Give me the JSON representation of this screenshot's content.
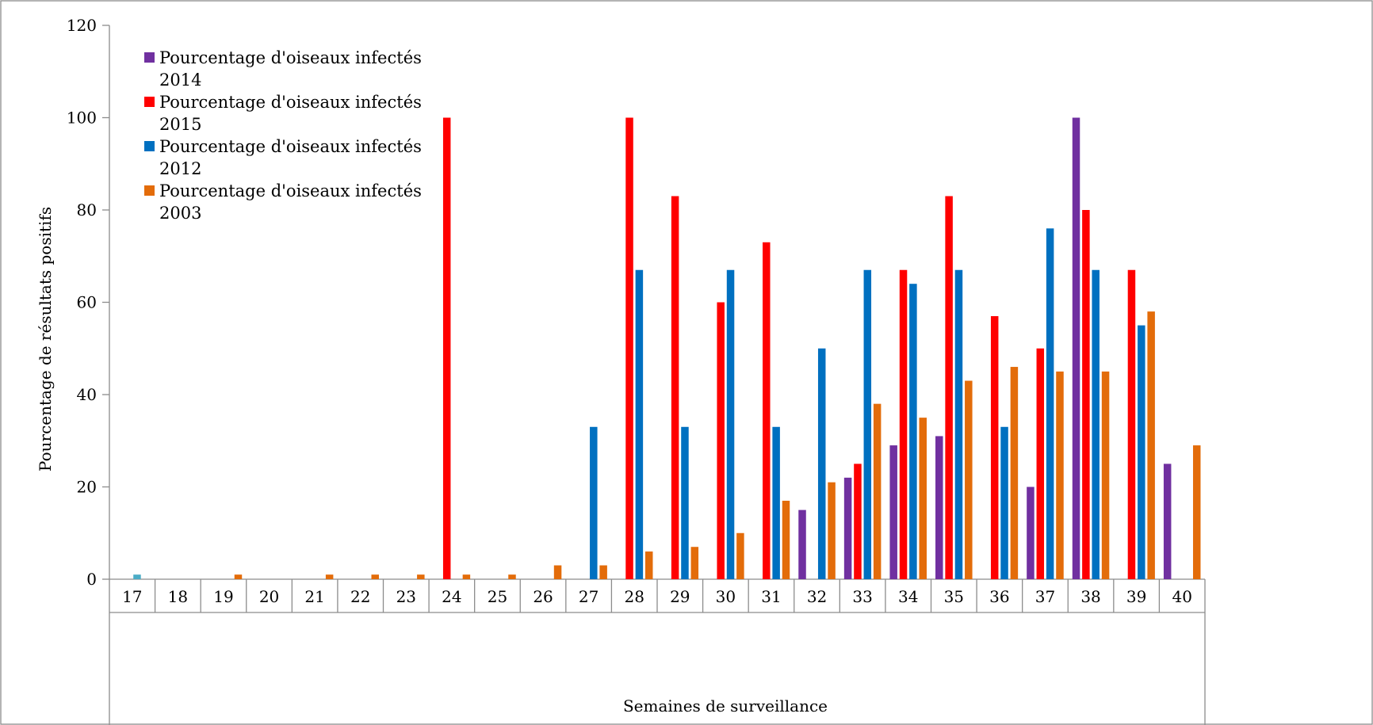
{
  "chart_data": {
    "type": "bar",
    "title": "",
    "xlabel": "Semaines de surveillance",
    "ylabel": "Pourcentage de résultats positifs",
    "ylim": [
      0,
      120
    ],
    "yticks": [
      0,
      20,
      40,
      60,
      80,
      100,
      120
    ],
    "grid": false,
    "legend_position": "top-left",
    "categories": [
      "17",
      "18",
      "19",
      "20",
      "21",
      "22",
      "23",
      "24",
      "25",
      "26",
      "27",
      "28",
      "29",
      "30",
      "31",
      "32",
      "33",
      "34",
      "35",
      "36",
      "37",
      "38",
      "39",
      "40"
    ],
    "series": [
      {
        "name_line1": "Pourcentage d'oiseaux infectés",
        "name_line2": "2014",
        "color": "#7030a0",
        "values": [
          0,
          0,
          0,
          0,
          0,
          0,
          0,
          0,
          0,
          0,
          0,
          0,
          0,
          0,
          0,
          15,
          22,
          29,
          31,
          0,
          20,
          100,
          0,
          25
        ]
      },
      {
        "name_line1": "Pourcentage d'oiseaux infectés",
        "name_line2": "2015",
        "color": "#ff0000",
        "values": [
          0,
          0,
          0,
          0,
          0,
          0,
          0,
          100,
          0,
          0,
          0,
          100,
          83,
          60,
          73,
          0,
          25,
          67,
          83,
          57,
          50,
          80,
          67,
          0
        ]
      },
      {
        "name_line1": "Pourcentage d'oiseaux infectés",
        "name_line2": "2012",
        "color": "#0070c0",
        "values": [
          1,
          0,
          0,
          0,
          0,
          0,
          0,
          0,
          0,
          0,
          33,
          67,
          33,
          67,
          33,
          50,
          67,
          64,
          67,
          33,
          76,
          67,
          55,
          0
        ]
      },
      {
        "name_line1": "Pourcentage d'oiseaux infectés",
        "name_line2": "2003",
        "color": "#e36c0a",
        "values": [
          0,
          0,
          1,
          0,
          1,
          1,
          1,
          1,
          1,
          3,
          3,
          6,
          7,
          10,
          17,
          21,
          38,
          35,
          43,
          46,
          45,
          45,
          58,
          29
        ]
      }
    ]
  }
}
